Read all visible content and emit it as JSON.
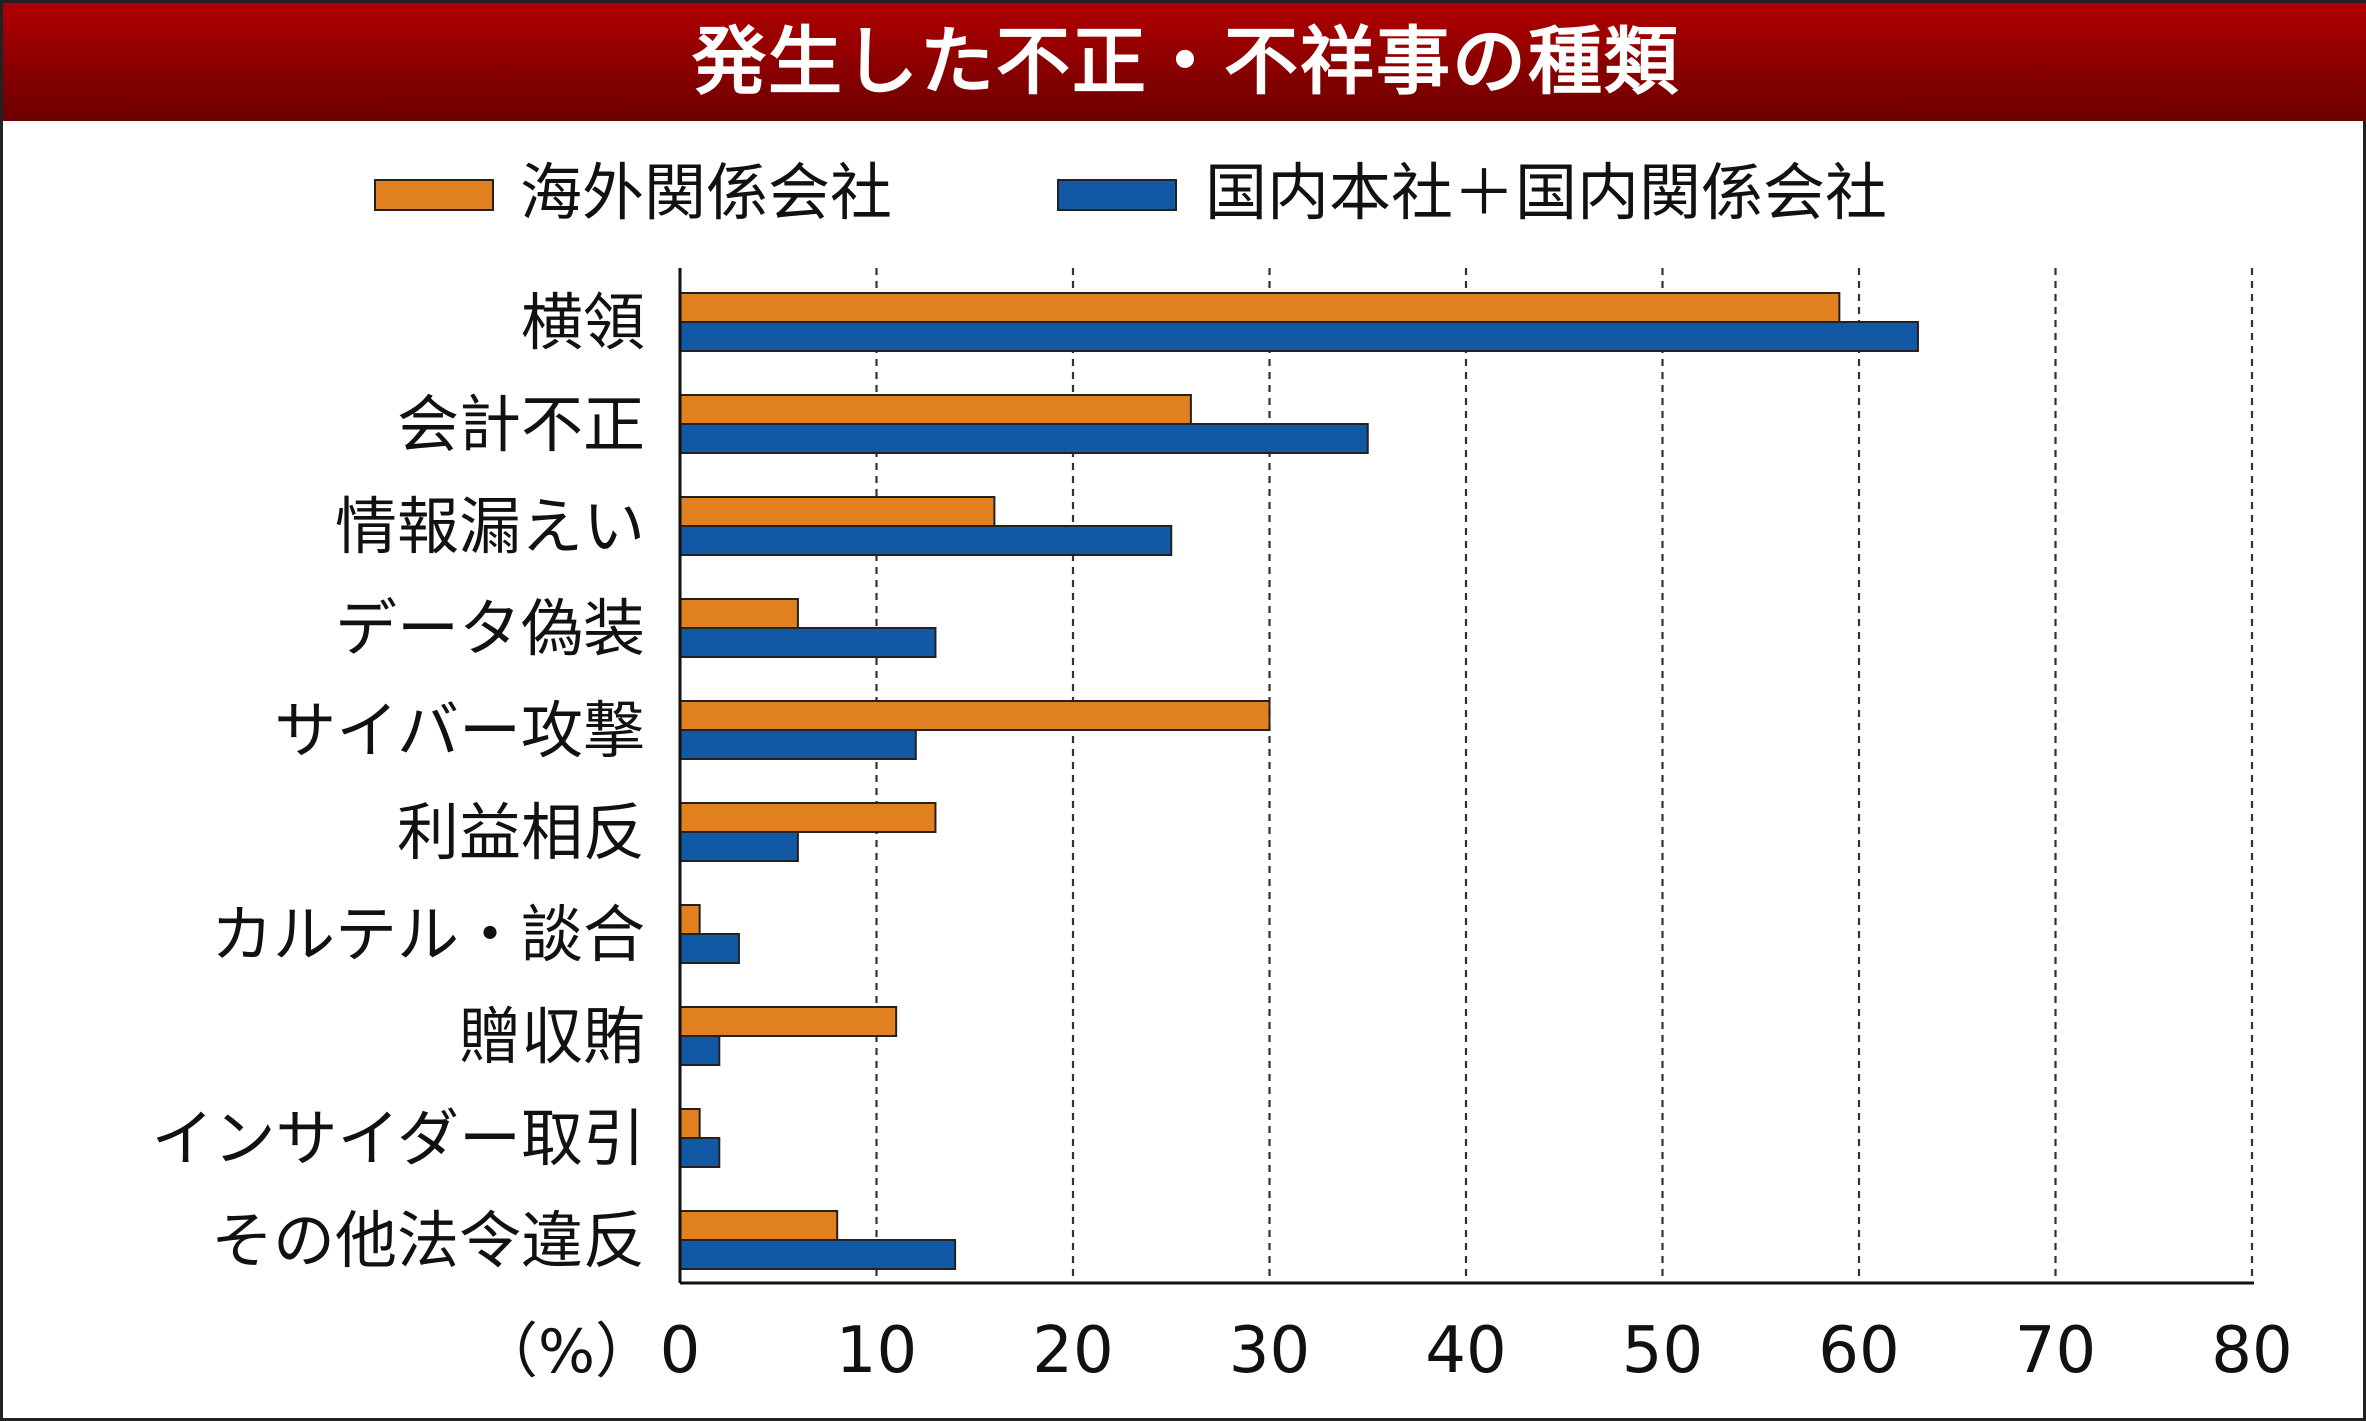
{
  "title": "発生した不正・不祥事の種類",
  "colors": {
    "overseas": "#e0801e",
    "domestic": "#1159a4",
    "title_bg": "#8a0000"
  },
  "chart_data": {
    "type": "bar",
    "orientation": "horizontal",
    "title": "発生した不正・不祥事の種類",
    "unit_label": "（%）",
    "xlim": [
      0,
      80
    ],
    "x_ticks": [
      "0",
      "10",
      "20",
      "30",
      "40",
      "50",
      "60",
      "70",
      "80"
    ],
    "grid": "vertical dashed",
    "legend_position": "top",
    "categories": [
      "横領",
      "会計不正",
      "情報漏えい",
      "データ偽装",
      "サイバー攻撃",
      "利益相反",
      "カルテル・談合",
      "贈収賄",
      "インサイダー取引",
      "その他法令違反"
    ],
    "series": [
      {
        "name": "海外関係会社",
        "color": "#e0801e",
        "values": [
          59,
          26,
          16,
          6,
          30,
          13,
          1,
          11,
          1,
          8
        ]
      },
      {
        "name": "国内本社＋国内関係会社",
        "color": "#1159a4",
        "values": [
          63,
          35,
          25,
          13,
          12,
          6,
          3,
          2,
          2,
          14
        ]
      }
    ]
  }
}
